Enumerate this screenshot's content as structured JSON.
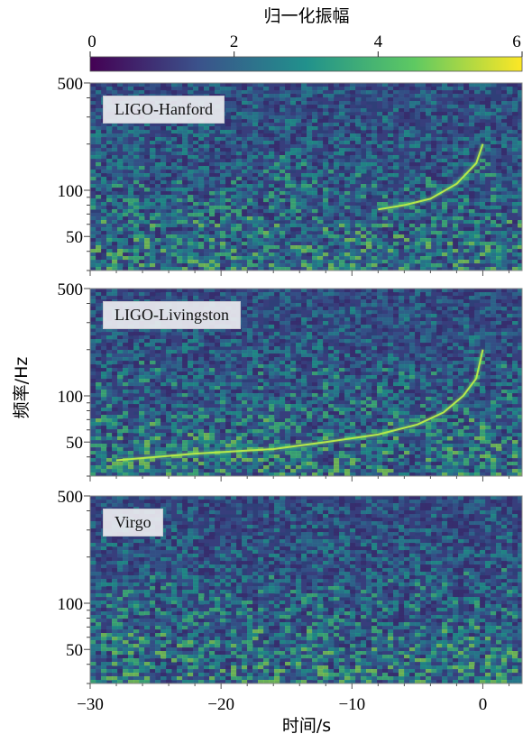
{
  "chart_data": [
    {
      "type": "heatmap",
      "label": "LIGO-Hanford",
      "xlim": [
        -30,
        3
      ],
      "ylim": [
        30,
        500
      ],
      "yscale": "log",
      "yticks": [
        50,
        100,
        500
      ],
      "chirp": [
        [
          -8,
          75
        ],
        [
          -6,
          80
        ],
        [
          -4,
          88
        ],
        [
          -2,
          110
        ],
        [
          -0.5,
          150
        ],
        [
          0,
          200
        ]
      ]
    },
    {
      "type": "heatmap",
      "label": "LIGO-Livingston",
      "xlim": [
        -30,
        3
      ],
      "ylim": [
        30,
        500
      ],
      "yscale": "log",
      "yticks": [
        50,
        100,
        500
      ],
      "chirp": [
        [
          -28,
          38
        ],
        [
          -22,
          42
        ],
        [
          -16,
          45
        ],
        [
          -12,
          50
        ],
        [
          -8,
          56
        ],
        [
          -5,
          65
        ],
        [
          -3,
          78
        ],
        [
          -1.5,
          100
        ],
        [
          -0.5,
          130
        ],
        [
          0,
          200
        ]
      ]
    },
    {
      "type": "heatmap",
      "label": "Virgo",
      "xlim": [
        -30,
        3
      ],
      "ylim": [
        30,
        500
      ],
      "yscale": "log",
      "yticks": [
        50,
        100,
        500
      ],
      "chirp": []
    }
  ],
  "colorbar": {
    "label": "归一化振幅",
    "ticks": [
      "0",
      "2",
      "4",
      "6"
    ],
    "range": [
      0,
      6
    ],
    "colormap": [
      "#440154",
      "#3b528b",
      "#21918c",
      "#5ec962",
      "#fde725"
    ]
  },
  "axes": {
    "ylabel": "频率/Hz",
    "xlabel": "时间/s",
    "xticks": [
      "−30",
      "−20",
      "−10",
      "0"
    ],
    "xtick_values": [
      -30,
      -20,
      -10,
      0
    ],
    "yticks": [
      "500",
      "100",
      "50"
    ],
    "ytick_values": [
      500,
      100,
      50
    ]
  }
}
